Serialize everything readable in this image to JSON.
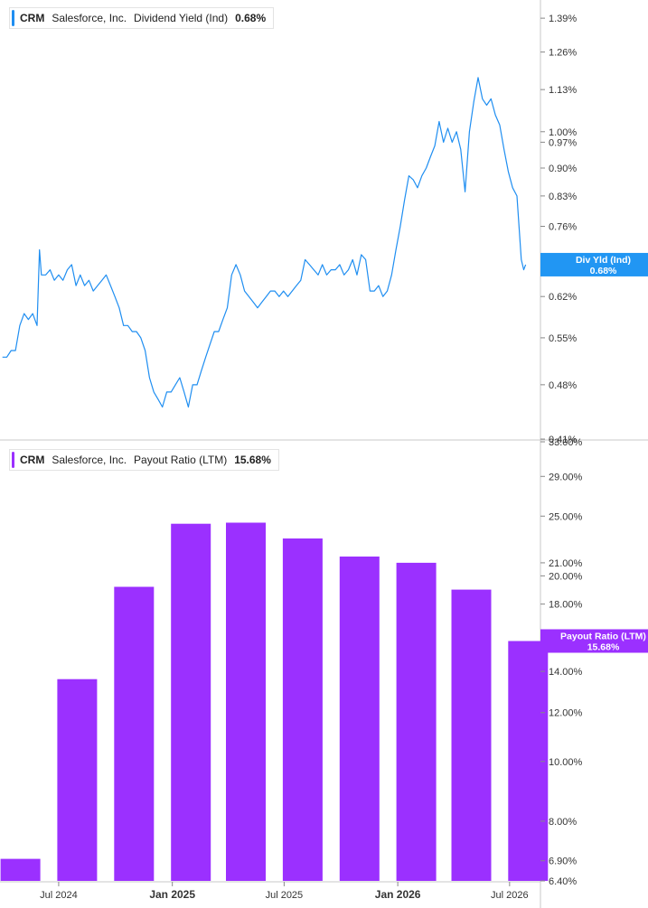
{
  "colors": {
    "line": "#1f8ef1",
    "bar": "#9b30ff",
    "axis": "#c8c8c8",
    "tag_line": "#2196f3",
    "tag_bar": "#9b30ff"
  },
  "legend_top": {
    "ticker": "CRM",
    "company": "Salesforce, Inc.",
    "metric": "Dividend Yield (Ind)",
    "value": "0.68%"
  },
  "legend_bottom": {
    "ticker": "CRM",
    "company": "Salesforce, Inc.",
    "metric": "Payout Ratio (LTM)",
    "value": "15.68%"
  },
  "tag_top": {
    "label": "Div Yld (Ind)",
    "value": "0.68%"
  },
  "tag_bottom": {
    "label": "Payout Ratio (LTM)",
    "value": "15.68%"
  },
  "chart_data": [
    {
      "type": "line",
      "scale": "log",
      "series": [
        {
          "name": "Dividend Yield (Ind)"
        }
      ],
      "y_tick_labels": [
        "1.39%",
        "1.26%",
        "1.13%",
        "1.00%",
        "0.97%",
        "0.90%",
        "0.83%",
        "0.76%",
        "0.62%",
        "0.55%",
        "0.48%",
        "0.41%"
      ],
      "y_ticks": [
        1.39,
        1.26,
        1.13,
        1.0,
        0.97,
        0.9,
        0.83,
        0.76,
        0.62,
        0.55,
        0.48,
        0.41
      ],
      "ylim": [
        0.41,
        1.45
      ],
      "x_range": [
        "2024-04-01",
        "2026-08-20"
      ],
      "points": [
        [
          "2024-04-01",
          0.52
        ],
        [
          "2024-04-08",
          0.52
        ],
        [
          "2024-04-15",
          0.53
        ],
        [
          "2024-04-22",
          0.53
        ],
        [
          "2024-04-29",
          0.57
        ],
        [
          "2024-05-06",
          0.59
        ],
        [
          "2024-05-13",
          0.58
        ],
        [
          "2024-05-20",
          0.59
        ],
        [
          "2024-05-27",
          0.57
        ],
        [
          "2024-05-31",
          0.71
        ],
        [
          "2024-06-03",
          0.66
        ],
        [
          "2024-06-10",
          0.66
        ],
        [
          "2024-06-17",
          0.67
        ],
        [
          "2024-06-24",
          0.65
        ],
        [
          "2024-07-01",
          0.66
        ],
        [
          "2024-07-08",
          0.65
        ],
        [
          "2024-07-15",
          0.67
        ],
        [
          "2024-07-22",
          0.68
        ],
        [
          "2024-07-29",
          0.64
        ],
        [
          "2024-08-05",
          0.66
        ],
        [
          "2024-08-12",
          0.64
        ],
        [
          "2024-08-19",
          0.65
        ],
        [
          "2024-08-26",
          0.63
        ],
        [
          "2024-09-02",
          0.64
        ],
        [
          "2024-09-09",
          0.65
        ],
        [
          "2024-09-16",
          0.66
        ],
        [
          "2024-09-23",
          0.64
        ],
        [
          "2024-09-30",
          0.62
        ],
        [
          "2024-10-07",
          0.6
        ],
        [
          "2024-10-14",
          0.57
        ],
        [
          "2024-10-21",
          0.57
        ],
        [
          "2024-10-28",
          0.56
        ],
        [
          "2024-11-04",
          0.56
        ],
        [
          "2024-11-11",
          0.55
        ],
        [
          "2024-11-18",
          0.53
        ],
        [
          "2024-11-25",
          0.49
        ],
        [
          "2024-12-02",
          0.47
        ],
        [
          "2024-12-09",
          0.46
        ],
        [
          "2024-12-16",
          0.45
        ],
        [
          "2024-12-23",
          0.47
        ],
        [
          "2024-12-30",
          0.47
        ],
        [
          "2025-01-06",
          0.48
        ],
        [
          "2025-01-13",
          0.49
        ],
        [
          "2025-01-20",
          0.47
        ],
        [
          "2025-01-27",
          0.45
        ],
        [
          "2025-02-03",
          0.48
        ],
        [
          "2025-02-10",
          0.48
        ],
        [
          "2025-02-17",
          0.5
        ],
        [
          "2025-02-24",
          0.52
        ],
        [
          "2025-03-03",
          0.54
        ],
        [
          "2025-03-10",
          0.56
        ],
        [
          "2025-03-17",
          0.56
        ],
        [
          "2025-03-24",
          0.58
        ],
        [
          "2025-03-31",
          0.6
        ],
        [
          "2025-04-07",
          0.66
        ],
        [
          "2025-04-14",
          0.68
        ],
        [
          "2025-04-21",
          0.66
        ],
        [
          "2025-04-28",
          0.63
        ],
        [
          "2025-05-05",
          0.62
        ],
        [
          "2025-05-12",
          0.61
        ],
        [
          "2025-05-19",
          0.6
        ],
        [
          "2025-05-26",
          0.61
        ],
        [
          "2025-06-02",
          0.62
        ],
        [
          "2025-06-09",
          0.63
        ],
        [
          "2025-06-16",
          0.63
        ],
        [
          "2025-06-23",
          0.62
        ],
        [
          "2025-06-30",
          0.63
        ],
        [
          "2025-07-07",
          0.62
        ],
        [
          "2025-07-14",
          0.63
        ],
        [
          "2025-07-21",
          0.64
        ],
        [
          "2025-07-28",
          0.65
        ],
        [
          "2025-08-04",
          0.69
        ],
        [
          "2025-08-11",
          0.68
        ],
        [
          "2025-08-18",
          0.67
        ],
        [
          "2025-08-25",
          0.66
        ],
        [
          "2025-09-01",
          0.68
        ],
        [
          "2025-09-08",
          0.66
        ],
        [
          "2025-09-15",
          0.67
        ],
        [
          "2025-09-22",
          0.67
        ],
        [
          "2025-09-29",
          0.68
        ],
        [
          "2025-10-06",
          0.66
        ],
        [
          "2025-10-13",
          0.67
        ],
        [
          "2025-10-20",
          0.69
        ],
        [
          "2025-10-27",
          0.66
        ],
        [
          "2025-11-03",
          0.7
        ],
        [
          "2025-11-10",
          0.69
        ],
        [
          "2025-11-17",
          0.63
        ],
        [
          "2025-11-24",
          0.63
        ],
        [
          "2025-12-01",
          0.64
        ],
        [
          "2025-12-08",
          0.62
        ],
        [
          "2025-12-15",
          0.63
        ],
        [
          "2025-12-22",
          0.66
        ],
        [
          "2025-12-29",
          0.71
        ],
        [
          "2026-01-05",
          0.76
        ],
        [
          "2026-01-12",
          0.82
        ],
        [
          "2026-01-19",
          0.88
        ],
        [
          "2026-01-26",
          0.87
        ],
        [
          "2026-02-02",
          0.85
        ],
        [
          "2026-02-09",
          0.88
        ],
        [
          "2026-02-16",
          0.9
        ],
        [
          "2026-02-23",
          0.93
        ],
        [
          "2026-03-02",
          0.96
        ],
        [
          "2026-03-09",
          1.03
        ],
        [
          "2026-03-16",
          0.97
        ],
        [
          "2026-03-23",
          1.01
        ],
        [
          "2026-03-30",
          0.97
        ],
        [
          "2026-04-06",
          1.0
        ],
        [
          "2026-04-13",
          0.95
        ],
        [
          "2026-04-20",
          0.84
        ],
        [
          "2026-04-27",
          1.0
        ],
        [
          "2026-05-04",
          1.09
        ],
        [
          "2026-05-11",
          1.17
        ],
        [
          "2026-05-18",
          1.1
        ],
        [
          "2026-05-25",
          1.08
        ],
        [
          "2026-06-01",
          1.1
        ],
        [
          "2026-06-08",
          1.05
        ],
        [
          "2026-06-15",
          1.02
        ],
        [
          "2026-06-22",
          0.95
        ],
        [
          "2026-06-29",
          0.89
        ],
        [
          "2026-07-06",
          0.85
        ],
        [
          "2026-07-13",
          0.83
        ],
        [
          "2026-07-20",
          0.69
        ],
        [
          "2026-07-24",
          0.67
        ],
        [
          "2026-07-27",
          0.68
        ]
      ]
    },
    {
      "type": "bar",
      "scale": "log",
      "series": [
        {
          "name": "Payout Ratio (LTM)"
        }
      ],
      "y_tick_labels": [
        "33.00%",
        "29.00%",
        "25.00%",
        "21.00%",
        "20.00%",
        "18.00%",
        "14.00%",
        "12.00%",
        "10.00%",
        "8.00%",
        "6.90%",
        "6.40%"
      ],
      "y_ticks": [
        33,
        29,
        25,
        21,
        20,
        18,
        14,
        12,
        10,
        8,
        6.9,
        6.4
      ],
      "ylim": [
        6.4,
        33.0
      ],
      "bars": [
        {
          "x": "2024-04-30",
          "value": 6.95
        },
        {
          "x": "2024-07-31",
          "value": 13.6
        },
        {
          "x": "2024-10-31",
          "value": 19.2
        },
        {
          "x": "2025-01-31",
          "value": 24.3
        },
        {
          "x": "2025-04-30",
          "value": 24.4
        },
        {
          "x": "2025-07-31",
          "value": 23.0
        },
        {
          "x": "2025-10-31",
          "value": 21.5
        },
        {
          "x": "2026-01-31",
          "value": 21.0
        },
        {
          "x": "2026-04-30",
          "value": 19.0
        },
        {
          "x": "2026-07-31",
          "value": 15.68
        }
      ]
    }
  ],
  "x_axis": {
    "ticks": [
      {
        "label": "Jul 2024",
        "date": "2024-07-01",
        "bold": false
      },
      {
        "label": "Jan 2025",
        "date": "2025-01-01",
        "bold": true
      },
      {
        "label": "Jul 2025",
        "date": "2025-07-01",
        "bold": false
      },
      {
        "label": "Jan 2026",
        "date": "2026-01-01",
        "bold": true
      },
      {
        "label": "Jul 2026",
        "date": "2026-07-01",
        "bold": false
      }
    ]
  }
}
